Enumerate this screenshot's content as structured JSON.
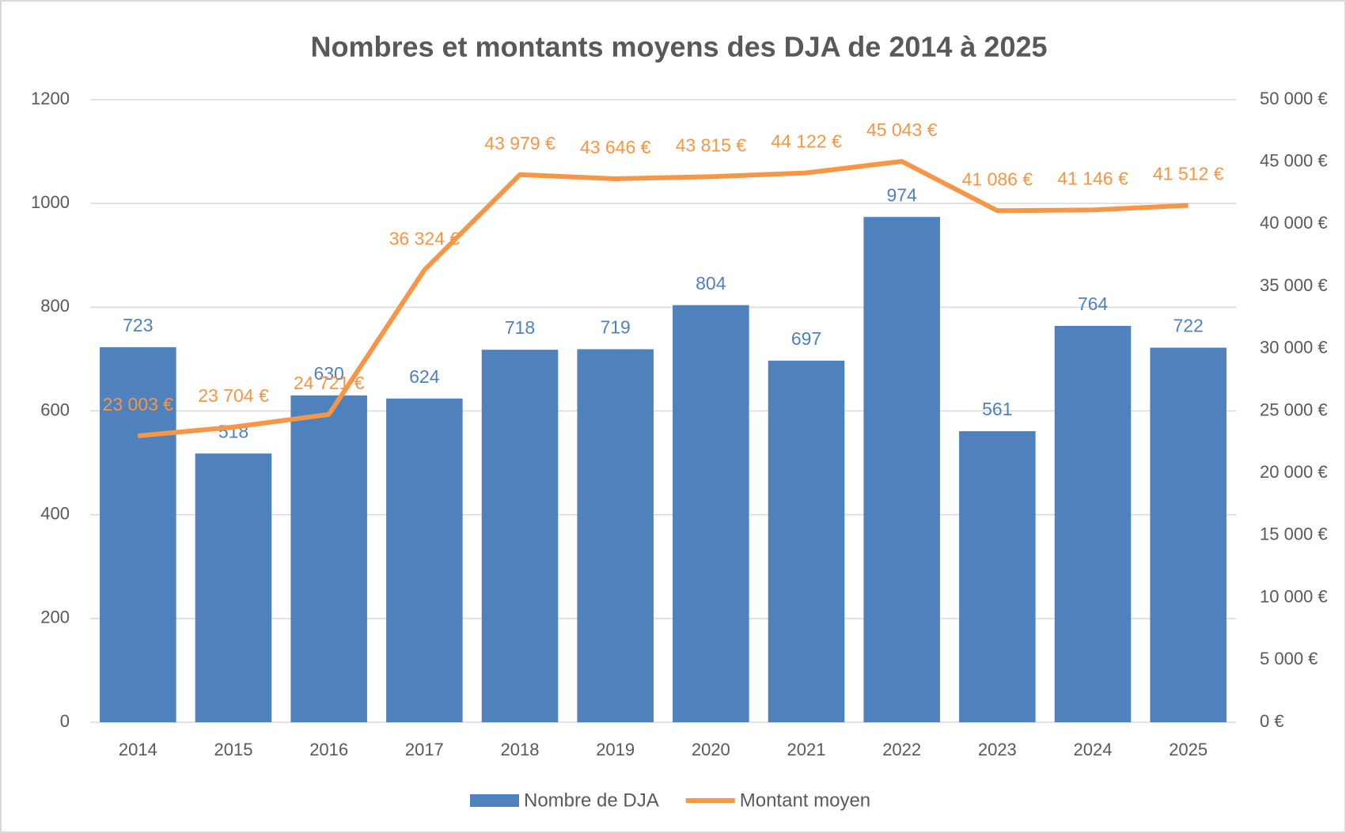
{
  "chart_data": {
    "type": "bar-line",
    "title": "Nombres et montants moyens des DJA de 2014 à 2025",
    "categories": [
      "2014",
      "2015",
      "2016",
      "2017",
      "2018",
      "2019",
      "2020",
      "2021",
      "2022",
      "2023",
      "2024",
      "2025"
    ],
    "series": [
      {
        "name": "Nombre de DJA",
        "type": "bar",
        "color": "#4f81bd",
        "values": [
          723,
          518,
          630,
          624,
          718,
          719,
          804,
          697,
          974,
          561,
          764,
          722
        ]
      },
      {
        "name": "Montant moyen",
        "type": "line",
        "axis": "y2",
        "color": "#f79646",
        "values": [
          23003,
          23704,
          24721,
          36324,
          43979,
          43646,
          43815,
          44122,
          45043,
          41086,
          41146,
          41512
        ],
        "value_labels": [
          "23 003 €",
          "23 704 €",
          "24 721 €",
          "36 324 €",
          "43 979 €",
          "43 646 €",
          "43 815 €",
          "44 122 €",
          "45 043 €",
          "41 086 €",
          "41 146 €",
          "41 512 €"
        ]
      }
    ],
    "ylim": [
      0,
      1200
    ],
    "yticks": [
      0,
      200,
      400,
      600,
      800,
      1000,
      1200
    ],
    "y2lim": [
      0,
      50000
    ],
    "y2ticks": [
      {
        "value": 0,
        "label": "0 €"
      },
      {
        "value": 5000,
        "label": "5 000 €"
      },
      {
        "value": 10000,
        "label": "10 000 €"
      },
      {
        "value": 15000,
        "label": "15 000 €"
      },
      {
        "value": 20000,
        "label": "20 000 €"
      },
      {
        "value": 25000,
        "label": "25 000 €"
      },
      {
        "value": 30000,
        "label": "30 000 €"
      },
      {
        "value": 35000,
        "label": "35 000 €"
      },
      {
        "value": 40000,
        "label": "40 000 €"
      },
      {
        "value": 45000,
        "label": "45 000 €"
      },
      {
        "value": 50000,
        "label": "50 000 €"
      }
    ],
    "grid": true,
    "legend": "bottom"
  }
}
